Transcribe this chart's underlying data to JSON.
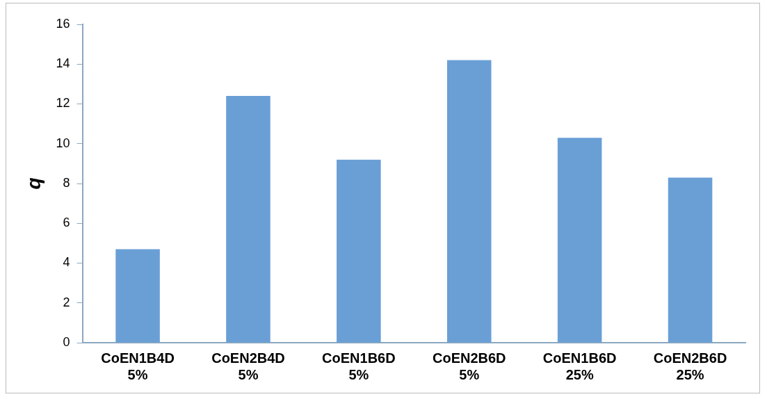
{
  "chart_data": {
    "type": "bar",
    "ylabel": "q",
    "categories": [
      "CoEN1B4D\n5%",
      "CoEN2B4D\n5%",
      "CoEN1B6D\n5%",
      "CoEN2B6D\n5%",
      "CoEN1B6D\n25%",
      "CoEN2B6D\n25%"
    ],
    "values": [
      4.7,
      12.4,
      9.2,
      14.2,
      10.3,
      8.3
    ],
    "color": "#6a9fd6",
    "ylim": [
      0,
      16
    ],
    "yticks": [
      0,
      2,
      4,
      6,
      8,
      10,
      12,
      14,
      16
    ],
    "grid": false,
    "legend": false
  }
}
